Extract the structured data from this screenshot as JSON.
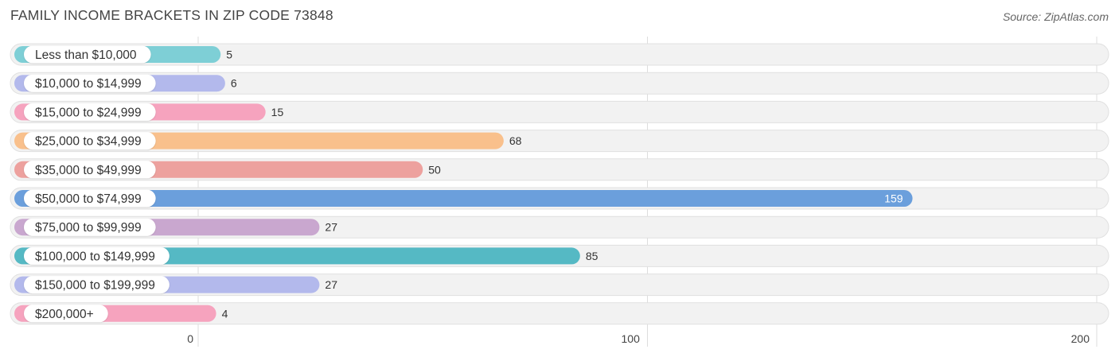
{
  "header": {
    "title": "FAMILY INCOME BRACKETS IN ZIP CODE 73848",
    "source": "Source: ZipAtlas.com"
  },
  "chart_data": {
    "type": "bar",
    "orientation": "horizontal",
    "title": "FAMILY INCOME BRACKETS IN ZIP CODE 73848",
    "categories": [
      "Less than $10,000",
      "$10,000 to $14,999",
      "$15,000 to $24,999",
      "$25,000 to $34,999",
      "$35,000 to $49,999",
      "$50,000 to $74,999",
      "$75,000 to $99,999",
      "$100,000 to $149,999",
      "$150,000 to $199,999",
      "$200,000+"
    ],
    "values": [
      5,
      6,
      15,
      68,
      50,
      159,
      27,
      85,
      27,
      4
    ],
    "colors": [
      "#7ecfd6",
      "#b3b9ec",
      "#f6a3be",
      "#f9c08c",
      "#eda19e",
      "#6b9fdc",
      "#c9a7cf",
      "#55b9c4",
      "#b3b9ec",
      "#f6a3be"
    ],
    "xlim": [
      0,
      200
    ],
    "xticks": [
      0,
      100,
      200
    ],
    "grid": true
  }
}
